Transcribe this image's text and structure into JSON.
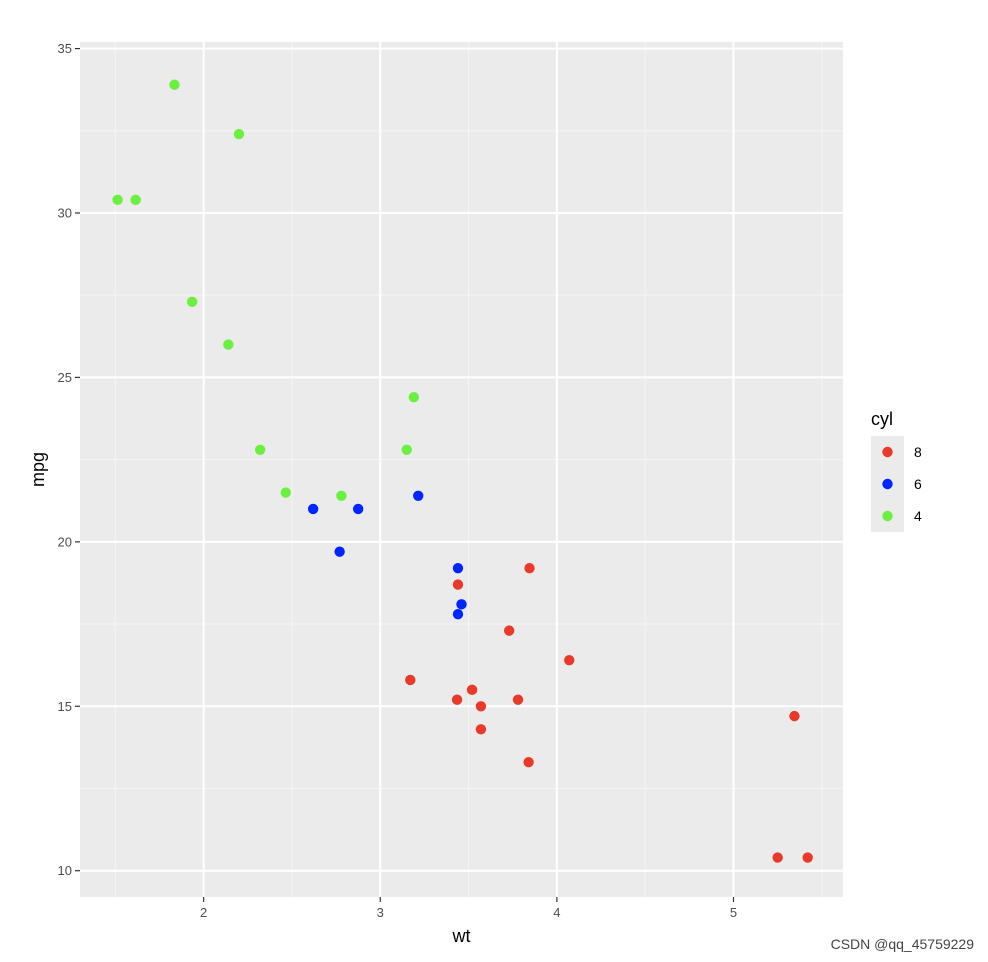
{
  "chart_data": {
    "type": "scatter",
    "xlabel": "wt",
    "ylabel": "mpg",
    "xlim": [
      1.3,
      5.62
    ],
    "ylim": [
      9.2,
      35.2
    ],
    "x_ticks": [
      2,
      3,
      4,
      5
    ],
    "y_ticks": [
      10,
      15,
      20,
      25,
      30,
      35
    ],
    "grid": true,
    "legend": {
      "title": "cyl",
      "placement": "right",
      "entries": [
        {
          "label": "8",
          "color": "#e8392b"
        },
        {
          "label": "6",
          "color": "#0026ff"
        },
        {
          "label": "4",
          "color": "#6bf042"
        }
      ]
    },
    "series": [
      {
        "name": "8",
        "color": "#e8392b",
        "points": [
          [
            3.44,
            18.7
          ],
          [
            3.57,
            14.3
          ],
          [
            4.07,
            16.4
          ],
          [
            3.73,
            17.3
          ],
          [
            3.78,
            15.2
          ],
          [
            5.25,
            10.4
          ],
          [
            5.42,
            10.4
          ],
          [
            5.345,
            14.7
          ],
          [
            3.52,
            15.5
          ],
          [
            3.435,
            15.2
          ],
          [
            3.84,
            13.3
          ],
          [
            3.845,
            19.2
          ],
          [
            3.17,
            15.8
          ],
          [
            3.57,
            15.0
          ]
        ]
      },
      {
        "name": "6",
        "color": "#0026ff",
        "points": [
          [
            2.62,
            21.0
          ],
          [
            2.875,
            21.0
          ],
          [
            3.215,
            21.4
          ],
          [
            3.46,
            18.1
          ],
          [
            3.44,
            19.2
          ],
          [
            3.44,
            17.8
          ],
          [
            2.77,
            19.7
          ]
        ]
      },
      {
        "name": "4",
        "color": "#6bf042",
        "points": [
          [
            2.32,
            22.8
          ],
          [
            3.19,
            24.4
          ],
          [
            3.15,
            22.8
          ],
          [
            2.2,
            32.4
          ],
          [
            1.615,
            30.4
          ],
          [
            1.835,
            33.9
          ],
          [
            2.465,
            21.5
          ],
          [
            1.935,
            27.3
          ],
          [
            2.14,
            26.0
          ],
          [
            1.513,
            30.4
          ],
          [
            2.78,
            21.4
          ]
        ]
      }
    ]
  },
  "colors": {
    "panel_background": "#ebebeb",
    "grid_major": "#ffffff",
    "grid_minor": "#f5f5f5",
    "legend_key_background": "#ebebeb"
  },
  "watermark": "CSDN @qq_45759229"
}
